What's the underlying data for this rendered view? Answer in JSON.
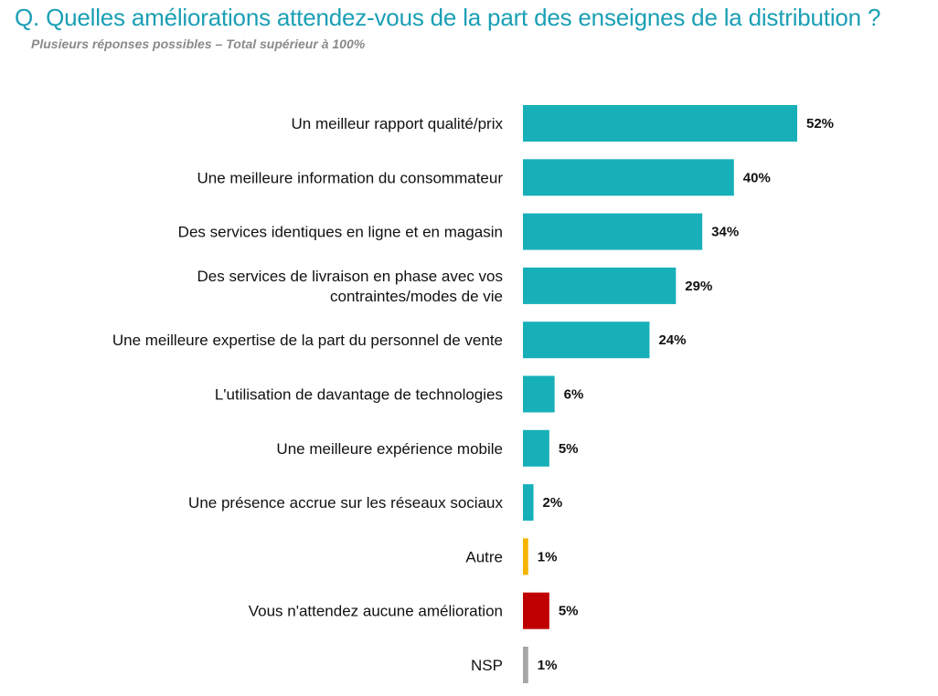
{
  "title": "Q. Quelles améliorations attendez-vous de la part des enseignes de la distribution ?",
  "subtitle": "Plusieurs réponses possibles – Total supérieur à 100%",
  "colors": {
    "title": "#1a9fb5"
  },
  "chart_data": {
    "type": "bar",
    "orientation": "horizontal",
    "categories": [
      [
        "Un meilleur rapport qualité/prix"
      ],
      [
        "Une meilleure information du consommateur"
      ],
      [
        "Des services identiques en ligne et en magasin"
      ],
      [
        "Des services de livraison en phase avec vos",
        "contraintes/modes de vie"
      ],
      [
        "Une meilleure expertise de la part du personnel de vente"
      ],
      [
        "L'utilisation de davantage de technologies"
      ],
      [
        "Une meilleure expérience mobile"
      ],
      [
        "Une présence accrue sur les réseaux sociaux"
      ],
      [
        "Autre"
      ],
      [
        "Vous n'attendez aucune amélioration"
      ],
      [
        "NSP"
      ]
    ],
    "values": [
      52,
      40,
      34,
      29,
      24,
      6,
      5,
      2,
      1,
      5,
      1
    ],
    "value_labels": [
      "52%",
      "40%",
      "34%",
      "29%",
      "24%",
      "6%",
      "5%",
      "2%",
      "1%",
      "5%",
      "1%"
    ],
    "bar_colors": [
      "#17b0b8",
      "#17b0b8",
      "#17b0b8",
      "#17b0b8",
      "#17b0b8",
      "#17b0b8",
      "#17b0b8",
      "#17b0b8",
      "#f5b400",
      "#c00000",
      "#a6a6a6"
    ],
    "xlim": [
      0,
      52
    ],
    "grid": false,
    "legend": "none"
  }
}
